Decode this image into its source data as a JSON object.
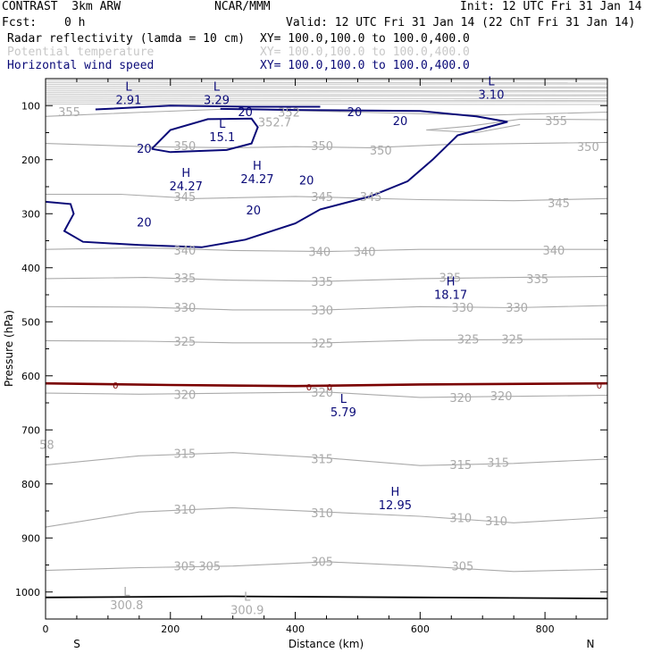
{
  "header": {
    "model": "CONTRAST  3km ARW",
    "org": "NCAR/MMM",
    "init": "Init: 12 UTC Fri 31 Jan 14",
    "fcst_label": "Fcst:",
    "fcst_value": "0 h",
    "valid": "Valid: 12 UTC Fri 31 Jan 14 (22 ChT Fri 31 Jan 14)"
  },
  "legend": [
    {
      "name": "Radar reflectivity (lamda = 10 cm)",
      "xy": "XY= 100.0,100.0 to 100.0,400.0",
      "color": "#000000"
    },
    {
      "name": "Potential temperature",
      "xy": "XY= 100.0,100.0 to 100.0,400.0",
      "color": "#c8c8c8"
    },
    {
      "name": "Horizontal wind speed",
      "xy": "XY= 100.0,100.0 to 100.0,400.0",
      "color": "#0a0a78"
    }
  ],
  "chart_data": {
    "type": "contour",
    "xlabel": "Distance (km)",
    "ylabel": "Pressure (hPa)",
    "xlim": [
      0,
      900
    ],
    "ylim": [
      1050,
      50
    ],
    "x_ticks": [
      0,
      200,
      400,
      600,
      800
    ],
    "y_ticks": [
      100,
      200,
      300,
      400,
      500,
      600,
      700,
      800,
      900,
      1000
    ],
    "x_end_labels": [
      "S",
      "N"
    ],
    "colors": {
      "theta": "#aaaaaa",
      "wind": "#0a0a78",
      "refl": "#7a0000",
      "axis": "#000000"
    },
    "theta_labels": [
      {
        "t": "355",
        "x": 38,
        "p": 111
      },
      {
        "t": "352",
        "x": 390,
        "p": 112
      },
      {
        "t": "352.7",
        "x": 367,
        "p": 130
      },
      {
        "t": "355",
        "x": 818,
        "p": 128
      },
      {
        "t": "350",
        "x": 223,
        "p": 174
      },
      {
        "t": "350",
        "x": 443,
        "p": 174
      },
      {
        "t": "350",
        "x": 537,
        "p": 182
      },
      {
        "t": "350",
        "x": 869,
        "p": 176
      },
      {
        "t": "345",
        "x": 223,
        "p": 268
      },
      {
        "t": "345",
        "x": 443,
        "p": 268
      },
      {
        "t": "345",
        "x": 521,
        "p": 268
      },
      {
        "t": "345",
        "x": 822,
        "p": 280
      },
      {
        "t": "340",
        "x": 223,
        "p": 367
      },
      {
        "t": "340",
        "x": 439,
        "p": 370
      },
      {
        "t": "340",
        "x": 511,
        "p": 370
      },
      {
        "t": "340",
        "x": 814,
        "p": 367
      },
      {
        "t": "335",
        "x": 223,
        "p": 419
      },
      {
        "t": "335",
        "x": 443,
        "p": 425
      },
      {
        "t": "335",
        "x": 648,
        "p": 418
      },
      {
        "t": "335",
        "x": 788,
        "p": 420
      },
      {
        "t": "330",
        "x": 223,
        "p": 473
      },
      {
        "t": "330",
        "x": 443,
        "p": 478
      },
      {
        "t": "330",
        "x": 668,
        "p": 473
      },
      {
        "t": "330",
        "x": 755,
        "p": 473
      },
      {
        "t": "325",
        "x": 223,
        "p": 536
      },
      {
        "t": "325",
        "x": 443,
        "p": 539
      },
      {
        "t": "325",
        "x": 677,
        "p": 532
      },
      {
        "t": "325",
        "x": 748,
        "p": 532
      },
      {
        "t": "320",
        "x": 223,
        "p": 634
      },
      {
        "t": "320",
        "x": 443,
        "p": 630
      },
      {
        "t": "320",
        "x": 665,
        "p": 640
      },
      {
        "t": "320",
        "x": 730,
        "p": 637
      },
      {
        "t": "315",
        "x": 223,
        "p": 743
      },
      {
        "t": "315",
        "x": 443,
        "p": 753
      },
      {
        "t": "315",
        "x": 665,
        "p": 764
      },
      {
        "t": "315",
        "x": 725,
        "p": 760
      },
      {
        "t": "310",
        "x": 223,
        "p": 847
      },
      {
        "t": "310",
        "x": 443,
        "p": 853
      },
      {
        "t": "310",
        "x": 665,
        "p": 862
      },
      {
        "t": "310",
        "x": 722,
        "p": 868
      },
      {
        "t": "305",
        "x": 223,
        "p": 952
      },
      {
        "t": "305",
        "x": 263,
        "p": 952
      },
      {
        "t": "305",
        "x": 443,
        "p": 943
      },
      {
        "t": "305",
        "x": 668,
        "p": 952
      },
      {
        "t": "58",
        "x": 2,
        "p": 727
      }
    ],
    "wind_labels": [
      {
        "t": "20",
        "x": 320,
        "p": 111
      },
      {
        "t": "20",
        "x": 495,
        "p": 111
      },
      {
        "t": "20",
        "x": 568,
        "p": 128
      },
      {
        "t": "20",
        "x": 158,
        "p": 179
      },
      {
        "t": "20",
        "x": 418,
        "p": 238
      },
      {
        "t": "20",
        "x": 333,
        "p": 293
      },
      {
        "t": "20",
        "x": 158,
        "p": 315
      }
    ],
    "refl_labels": [
      {
        "t": "0",
        "x": 112,
        "p": 615
      },
      {
        "t": "0",
        "x": 422,
        "p": 619
      },
      {
        "t": "0",
        "x": 455,
        "p": 619
      },
      {
        "t": "0",
        "x": 887,
        "p": 615
      }
    ],
    "extrema": [
      {
        "sym": "L",
        "val": "2.91",
        "x": 133,
        "p": 72,
        "color": "#0a0a78"
      },
      {
        "sym": "L",
        "val": "3.29",
        "x": 274,
        "p": 72,
        "color": "#0a0a78"
      },
      {
        "sym": "L",
        "val": "3.10",
        "x": 714,
        "p": 62,
        "color": "#0a0a78"
      },
      {
        "sym": "L",
        "val": "15.1",
        "x": 283,
        "p": 141,
        "color": "#0a0a78"
      },
      {
        "sym": "H",
        "val": "24.27",
        "x": 225,
        "p": 232,
        "color": "#0a0a78"
      },
      {
        "sym": "H",
        "val": "24.27",
        "x": 339,
        "p": 219,
        "color": "#0a0a78"
      },
      {
        "sym": "H",
        "val": "18.17",
        "x": 649,
        "p": 433,
        "color": "#0a0a78"
      },
      {
        "sym": "L",
        "val": "5.79",
        "x": 477,
        "p": 650,
        "color": "#0a0a78"
      },
      {
        "sym": "H",
        "val": "12.95",
        "x": 560,
        "p": 822,
        "color": "#0a0a78"
      },
      {
        "sym": "L",
        "val": "300.8",
        "x": 130,
        "p": 1007,
        "color": "#aaaaaa"
      },
      {
        "sym": "L",
        "val": "300.9",
        "x": 323,
        "p": 1016,
        "color": "#aaaaaa"
      }
    ],
    "theta_lines": [
      [
        [
          0,
          120
        ],
        [
          160,
          112
        ],
        [
          300,
          106
        ],
        [
          500,
          112
        ],
        [
          700,
          118
        ],
        [
          900,
          112
        ]
      ],
      [
        [
          610,
          145
        ],
        [
          680,
          138
        ],
        [
          760,
          125
        ],
        [
          900,
          126
        ]
      ],
      [
        [
          610,
          145
        ],
        [
          690,
          150
        ],
        [
          760,
          135
        ]
      ],
      [
        [
          0,
          170
        ],
        [
          160,
          176
        ],
        [
          300,
          178
        ],
        [
          400,
          176
        ],
        [
          520,
          178
        ],
        [
          640,
          172
        ],
        [
          900,
          168
        ]
      ],
      [
        [
          0,
          264
        ],
        [
          120,
          264
        ],
        [
          240,
          272
        ],
        [
          400,
          268
        ],
        [
          600,
          274
        ],
        [
          750,
          276
        ],
        [
          900,
          272
        ]
      ],
      [
        [
          0,
          366
        ],
        [
          160,
          363
        ],
        [
          300,
          368
        ],
        [
          450,
          370
        ],
        [
          600,
          366
        ],
        [
          900,
          366
        ]
      ],
      [
        [
          0,
          420
        ],
        [
          160,
          418
        ],
        [
          300,
          423
        ],
        [
          450,
          425
        ],
        [
          600,
          420
        ],
        [
          750,
          418
        ],
        [
          900,
          416
        ]
      ],
      [
        [
          0,
          472
        ],
        [
          160,
          473
        ],
        [
          300,
          478
        ],
        [
          450,
          478
        ],
        [
          600,
          472
        ],
        [
          750,
          474
        ],
        [
          900,
          470
        ]
      ],
      [
        [
          0,
          535
        ],
        [
          160,
          536
        ],
        [
          300,
          539
        ],
        [
          450,
          539
        ],
        [
          600,
          534
        ],
        [
          900,
          532
        ]
      ],
      [
        [
          0,
          632
        ],
        [
          150,
          634
        ],
        [
          300,
          632
        ],
        [
          450,
          630
        ],
        [
          600,
          640
        ],
        [
          750,
          638
        ],
        [
          900,
          636
        ]
      ],
      [
        [
          0,
          765
        ],
        [
          150,
          748
        ],
        [
          300,
          742
        ],
        [
          450,
          752
        ],
        [
          600,
          766
        ],
        [
          750,
          762
        ],
        [
          900,
          754
        ]
      ],
      [
        [
          0,
          880
        ],
        [
          150,
          852
        ],
        [
          300,
          844
        ],
        [
          450,
          852
        ],
        [
          600,
          860
        ],
        [
          750,
          872
        ],
        [
          900,
          862
        ]
      ],
      [
        [
          0,
          960
        ],
        [
          150,
          955
        ],
        [
          300,
          952
        ],
        [
          450,
          944
        ],
        [
          600,
          952
        ],
        [
          750,
          962
        ],
        [
          900,
          958
        ]
      ]
    ],
    "wind_lines": [
      [
        [
          0,
          278
        ],
        [
          40,
          282
        ],
        [
          45,
          300
        ],
        [
          30,
          332
        ],
        [
          60,
          352
        ],
        [
          150,
          358
        ],
        [
          250,
          362
        ],
        [
          320,
          348
        ],
        [
          400,
          318
        ],
        [
          440,
          292
        ],
        [
          520,
          268
        ],
        [
          580,
          240
        ],
        [
          620,
          200
        ],
        [
          660,
          155
        ],
        [
          740,
          130
        ],
        [
          690,
          120
        ],
        [
          600,
          110
        ],
        [
          400,
          108
        ],
        [
          280,
          106
        ]
      ],
      [
        [
          170,
          180
        ],
        [
          200,
          145
        ],
        [
          260,
          125
        ],
        [
          330,
          124
        ],
        [
          340,
          140
        ],
        [
          330,
          170
        ],
        [
          290,
          182
        ],
        [
          200,
          186
        ],
        [
          170,
          180
        ]
      ],
      [
        [
          80,
          107
        ],
        [
          200,
          100
        ],
        [
          330,
          102
        ],
        [
          440,
          102
        ]
      ]
    ],
    "refl_lines": [
      [
        [
          0,
          614
        ],
        [
          200,
          617
        ],
        [
          400,
          619
        ],
        [
          600,
          616
        ],
        [
          900,
          614
        ]
      ]
    ],
    "black_lines": [
      [
        [
          0,
          1010
        ],
        [
          300,
          1008
        ],
        [
          600,
          1010
        ],
        [
          900,
          1012
        ]
      ]
    ]
  }
}
